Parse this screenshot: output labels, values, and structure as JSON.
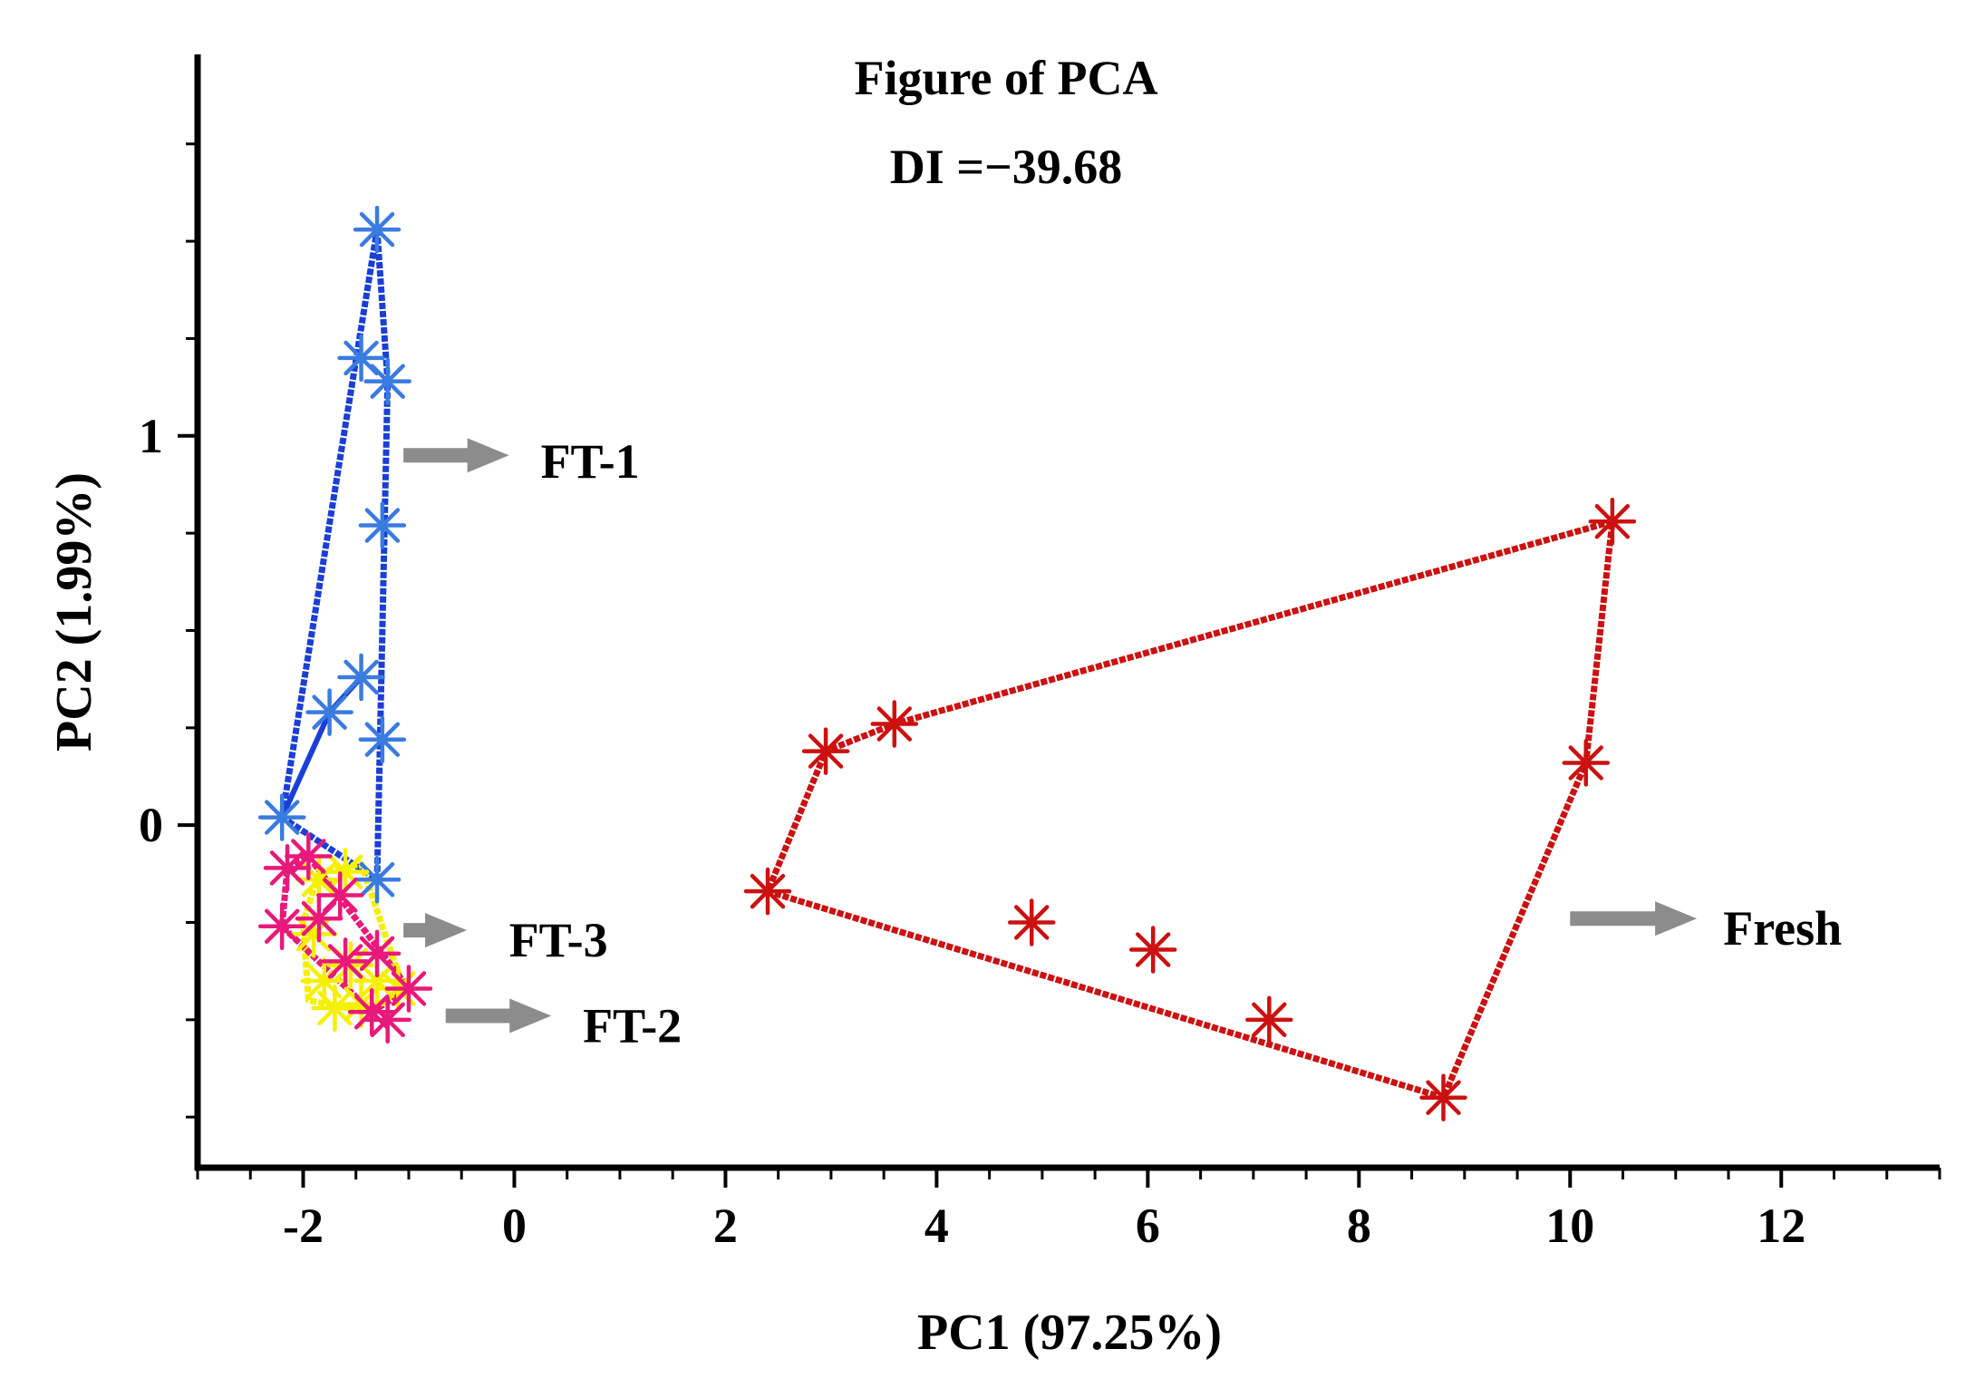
{
  "chart_data": {
    "type": "scatter",
    "title": "Figure of PCA",
    "subtitle": "DI =−39.68",
    "xlabel": "PC1 (97.25%)",
    "ylabel": "PC2 (1.99%)",
    "xlim": [
      -3.0,
      13.5
    ],
    "ylim": [
      -0.88,
      1.98
    ],
    "xticks": [
      -2,
      0,
      2,
      4,
      6,
      8,
      10,
      12
    ],
    "xtick_labels": [
      "-2",
      "0",
      "2",
      "4",
      "6",
      "8",
      "10",
      "12"
    ],
    "yticks": [
      0,
      1
    ],
    "ytick_labels": [
      "0",
      "1"
    ],
    "x_minor_step": 0.5,
    "y_minor_step": 0.25,
    "grid": false,
    "series": [
      {
        "name": "FT-1",
        "color": "#3a7be0",
        "line_color": "#1a3fd6",
        "points": [
          [
            -1.3,
            1.53
          ],
          [
            -1.45,
            1.2
          ],
          [
            -1.2,
            1.14
          ],
          [
            -1.25,
            0.77
          ],
          [
            -1.45,
            0.38
          ],
          [
            -1.75,
            0.29
          ],
          [
            -1.25,
            0.22
          ],
          [
            -2.2,
            0.02
          ],
          [
            -1.3,
            -0.14
          ]
        ],
        "hull": [
          [
            -1.3,
            1.53
          ],
          [
            -1.2,
            1.14
          ],
          [
            -1.3,
            -0.14
          ],
          [
            -2.2,
            0.02
          ]
        ],
        "inner_path": [
          [
            -1.45,
            0.38
          ],
          [
            -1.75,
            0.29
          ],
          [
            -2.2,
            0.02
          ]
        ]
      },
      {
        "name": "FT-2",
        "color": "#f5ef00",
        "line_color": "#f5ef00",
        "points": [
          [
            -1.85,
            -0.14
          ],
          [
            -1.6,
            -0.12
          ],
          [
            -1.9,
            -0.28
          ],
          [
            -1.55,
            -0.36
          ],
          [
            -1.8,
            -0.4
          ],
          [
            -1.3,
            -0.4
          ],
          [
            -1.1,
            -0.42
          ],
          [
            -1.45,
            -0.46
          ],
          [
            -1.7,
            -0.47
          ]
        ],
        "hull": [
          [
            -1.85,
            -0.12
          ],
          [
            -1.45,
            -0.1
          ],
          [
            -1.05,
            -0.42
          ],
          [
            -1.4,
            -0.48
          ],
          [
            -1.95,
            -0.45
          ],
          [
            -2.0,
            -0.25
          ]
        ]
      },
      {
        "name": "FT-3",
        "color": "#e8197a",
        "line_color": "#e8197a",
        "points": [
          [
            -2.15,
            -0.11
          ],
          [
            -1.95,
            -0.08
          ],
          [
            -1.65,
            -0.18
          ],
          [
            -2.2,
            -0.26
          ],
          [
            -1.85,
            -0.24
          ],
          [
            -1.6,
            -0.35
          ],
          [
            -1.3,
            -0.33
          ],
          [
            -1.0,
            -0.42
          ],
          [
            -1.35,
            -0.48
          ],
          [
            -1.2,
            -0.5
          ]
        ],
        "hull": [
          [
            -2.15,
            -0.11
          ],
          [
            -1.95,
            -0.08
          ],
          [
            -1.0,
            -0.42
          ],
          [
            -1.35,
            -0.48
          ],
          [
            -2.2,
            -0.26
          ]
        ]
      },
      {
        "name": "Fresh",
        "color": "#cc1111",
        "line_color": "#cc1111",
        "points": [
          [
            10.4,
            0.78
          ],
          [
            3.6,
            0.26
          ],
          [
            2.95,
            0.19
          ],
          [
            10.15,
            0.16
          ],
          [
            2.4,
            -0.17
          ],
          [
            4.9,
            -0.25
          ],
          [
            6.05,
            -0.32
          ],
          [
            7.15,
            -0.5
          ],
          [
            8.8,
            -0.7
          ]
        ],
        "hull": [
          [
            10.4,
            0.78
          ],
          [
            3.6,
            0.26
          ],
          [
            2.95,
            0.19
          ],
          [
            2.4,
            -0.17
          ],
          [
            8.8,
            -0.7
          ],
          [
            10.15,
            0.16
          ]
        ]
      }
    ],
    "annotations": [
      {
        "label": "FT-1",
        "series": "FT-1",
        "arrow_start": [
          -1.05,
          0.95
        ],
        "arrow_end": [
          -0.05,
          0.95
        ],
        "text_at": [
          0.25,
          0.93
        ]
      },
      {
        "label": "FT-3",
        "series": "FT-3",
        "arrow_start": [
          -1.05,
          -0.27
        ],
        "arrow_end": [
          -0.45,
          -0.27
        ],
        "text_at": [
          -0.05,
          -0.3
        ]
      },
      {
        "label": "FT-2",
        "series": "FT-2",
        "arrow_start": [
          -0.65,
          -0.49
        ],
        "arrow_end": [
          0.35,
          -0.49
        ],
        "text_at": [
          0.65,
          -0.52
        ]
      },
      {
        "label": "Fresh",
        "series": "Fresh",
        "arrow_start": [
          10.0,
          -0.24
        ],
        "arrow_end": [
          11.2,
          -0.24
        ],
        "text_at": [
          11.45,
          -0.27
        ]
      }
    ],
    "arrow_color": "#8c8c8c"
  }
}
